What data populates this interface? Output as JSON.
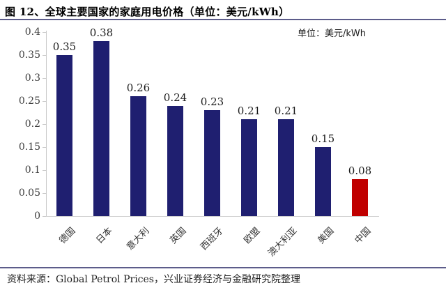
{
  "header": {
    "title": "图 12、全球主要国家的家庭用电价格（单位：美元/kWh）"
  },
  "chart_data": {
    "type": "bar",
    "title": "全球主要国家的家庭用电价格",
    "unit_label": "单位：美元/kWh",
    "categories": [
      "德国",
      "日本",
      "意大利",
      "英国",
      "西班牙",
      "欧盟",
      "澳大利亚",
      "美国",
      "中国"
    ],
    "values": [
      0.35,
      0.38,
      0.26,
      0.24,
      0.23,
      0.21,
      0.21,
      0.15,
      0.08
    ],
    "value_labels": [
      "0.35",
      "0.38",
      "0.26",
      "0.24",
      "0.23",
      "0.21",
      "0.21",
      "0.15",
      "0.08"
    ],
    "bar_colors": [
      "#1F1F70",
      "#1F1F70",
      "#1F1F70",
      "#1F1F70",
      "#1F1F70",
      "#1F1F70",
      "#1F1F70",
      "#1F1F70",
      "#C00000"
    ],
    "highlight_category": "中国",
    "y_tick_labels": [
      "0",
      "0.05",
      "0.1",
      "0.15",
      "0.2",
      "0.25",
      "0.3",
      "0.35",
      "0.4"
    ],
    "ylim": [
      0,
      0.4
    ],
    "xlabel": "",
    "ylabel": "",
    "grid": false,
    "legend_position": "none"
  },
  "footer": {
    "source": "资料来源：Global Petrol Prices，兴业证券经济与金融研究院整理"
  },
  "colors": {
    "bar_navy": "#1F1F70",
    "bar_red": "#C00000",
    "rule_blue": "#5C5C8A",
    "axis_gray": "#C9C9C9",
    "text_black": "#000000"
  }
}
